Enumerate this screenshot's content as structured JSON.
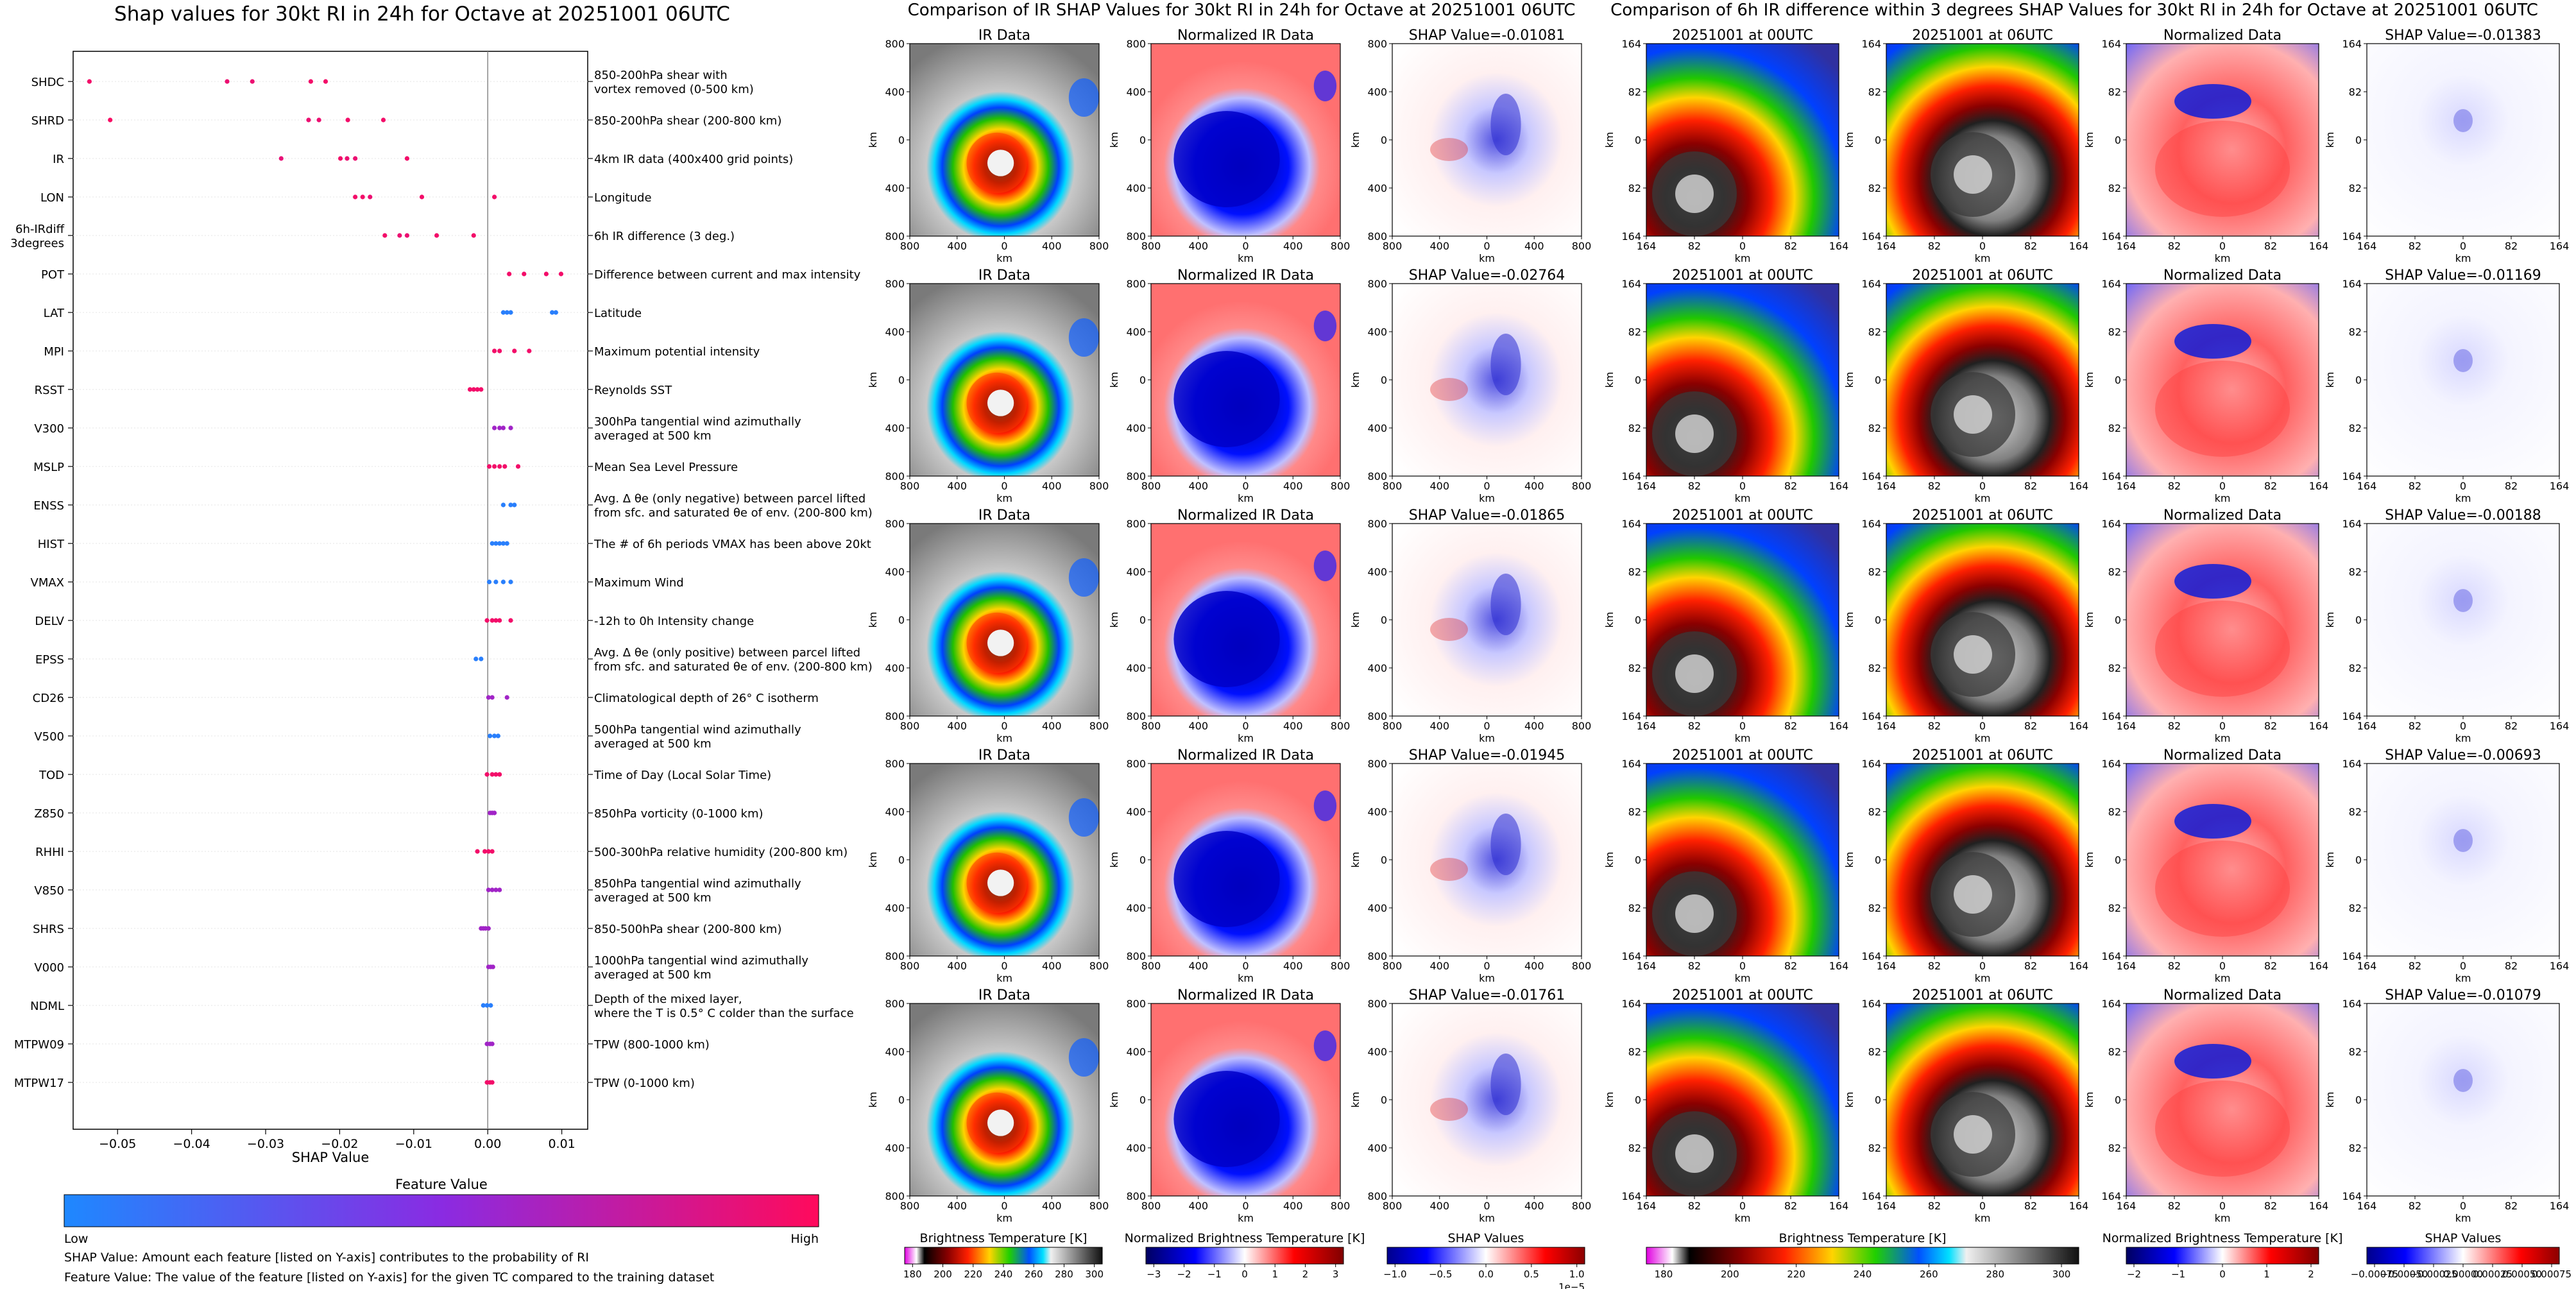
{
  "beeswarm": {
    "title": "Shap values for 30kt RI in 24h for Octave at 20251001 06UTC",
    "xlabel": "SHAP Value",
    "features": [
      {
        "name": "SHDC",
        "desc": "850-200hPa shear with\nvortex removed (0-500 km)"
      },
      {
        "name": "SHRD",
        "desc": "850-200hPa shear (200-800 km)"
      },
      {
        "name": "IR",
        "desc": "4km IR data (400x400 grid points)"
      },
      {
        "name": "LON",
        "desc": "Longitude"
      },
      {
        "name": "6h-IRdiff\n3degrees",
        "desc": "6h IR difference (3 deg.)"
      },
      {
        "name": "POT",
        "desc": "Difference between current and max intensity"
      },
      {
        "name": "LAT",
        "desc": "Latitude"
      },
      {
        "name": "MPI",
        "desc": "Maximum potential intensity"
      },
      {
        "name": "RSST",
        "desc": "Reynolds SST"
      },
      {
        "name": "V300",
        "desc": "300hPa tangential wind azimuthally\naveraged at 500 km"
      },
      {
        "name": "MSLP",
        "desc": "Mean Sea Level Pressure"
      },
      {
        "name": "ENSS",
        "desc": "Avg. Δ θe (only negative) between parcel lifted\nfrom sfc. and saturated θe of env. (200-800 km)"
      },
      {
        "name": "HIST",
        "desc": "The # of 6h periods VMAX has been above 20kt"
      },
      {
        "name": "VMAX",
        "desc": "Maximum Wind"
      },
      {
        "name": "DELV",
        "desc": "-12h to 0h Intensity change"
      },
      {
        "name": "EPSS",
        "desc": "Avg. Δ θe (only positive) between parcel lifted\nfrom sfc. and saturated θe of env. (200-800 km)"
      },
      {
        "name": "CD26",
        "desc": "Climatological depth of 26° C isotherm"
      },
      {
        "name": "V500",
        "desc": "500hPa tangential wind azimuthally\naveraged at 500 km"
      },
      {
        "name": "TOD",
        "desc": "Time of Day (Local Solar Time)"
      },
      {
        "name": "Z850",
        "desc": "850hPa vorticity (0-1000 km)"
      },
      {
        "name": "RHHI",
        "desc": "500-300hPa relative humidity (200-800 km)"
      },
      {
        "name": "V850",
        "desc": "850hPa tangential wind azimuthally\naveraged at 500 km"
      },
      {
        "name": "SHRS",
        "desc": "850-500hPa shear (200-800 km)"
      },
      {
        "name": "V000",
        "desc": "1000hPa tangential wind azimuthally\naveraged at 500 km"
      },
      {
        "name": "NDML",
        "desc": "Depth of the mixed layer,\nwhere the T is 0.5° C colder than the surface"
      },
      {
        "name": "MTPW09",
        "desc": "TPW (800-1000 km)"
      },
      {
        "name": "MTPW17",
        "desc": "TPW (0-1000 km)"
      }
    ],
    "colorbar_title": "Feature Value",
    "colorbar_low": "Low",
    "colorbar_high": "High",
    "note1": "SHAP Value: Amount each feature [listed on Y-axis] contributes to the probability of RI",
    "note2": "Feature Value: The value of the feature [listed on Y-axis] for the given TC compared to the training dataset"
  },
  "ir_section": {
    "title": "Comparison of IR SHAP Values for 30kt RI in 24h for Octave at 20251001 06UTC",
    "col_titles": [
      "IR Data",
      "Normalized IR Data"
    ],
    "shap_titles": [
      "SHAP Value=-0.01081",
      "SHAP Value=-0.02764",
      "SHAP Value=-0.01865",
      "SHAP Value=-0.01945",
      "SHAP Value=-0.01761"
    ],
    "ticks": [
      "800",
      "400",
      "0",
      "400",
      "800"
    ],
    "unit": "km",
    "cb1_label": "Brightness Temperature [K]",
    "cb1_ticks": [
      "180",
      "200",
      "220",
      "240",
      "260",
      "280",
      "300"
    ],
    "cb2_label": "Normalized Brightness Temperature [K]",
    "cb2_ticks": [
      "−3",
      "−2",
      "−1",
      "0",
      "1",
      "2",
      "3"
    ],
    "cb3_label": "SHAP Values",
    "cb3_ticks": [
      "−1.0",
      "−0.5",
      "0.0",
      "0.5",
      "1.0"
    ],
    "cb3_exp": "1e−5"
  },
  "irdiff_section": {
    "title": "Comparison of 6h IR difference within 3 degrees SHAP Values for 30kt RI in 24h for Octave at 20251001 06UTC",
    "col_titles": [
      "20251001 at 00UTC",
      "20251001 at 06UTC",
      "Normalized Data"
    ],
    "shap_titles": [
      "SHAP Value=-0.01383",
      "SHAP Value=-0.01169",
      "SHAP Value=-0.00188",
      "SHAP Value=-0.00693",
      "SHAP Value=-0.01079"
    ],
    "ticks": [
      "164",
      "82",
      "0",
      "82",
      "164"
    ],
    "unit": "km",
    "cb1_label": "Brightness Temperature [K]",
    "cb1_ticks": [
      "180",
      "200",
      "220",
      "240",
      "260",
      "280",
      "300"
    ],
    "cb2_label": "Normalized Brightness Temperature [K]",
    "cb2_ticks": [
      "−2",
      "−1",
      "0",
      "1",
      "2"
    ],
    "cb3_label": "SHAP Values",
    "cb3_ticks": [
      "−0.00075",
      "−0.00050",
      "−0.00025",
      "0.00000",
      "0.00025",
      "0.00050",
      "0.00075"
    ]
  },
  "chart_data": [
    {
      "type": "scatter",
      "title": "Shap values for 30kt RI in 24h for Octave at 20251001 06UTC",
      "xlabel": "SHAP Value",
      "ylabel": "",
      "xlim": [
        -0.056,
        0.0135
      ],
      "xticks": [
        -0.05,
        -0.04,
        -0.03,
        -0.02,
        -0.01,
        0.0,
        0.01
      ],
      "xtick_labels": [
        "−0.05",
        "−0.04",
        "−0.03",
        "−0.02",
        "−0.01",
        "0.00",
        "0.01"
      ],
      "categories": [
        "SHDC",
        "SHRD",
        "IR",
        "LON",
        "6h-IRdiff 3degrees",
        "POT",
        "LAT",
        "MPI",
        "RSST",
        "V300",
        "MSLP",
        "ENSS",
        "HIST",
        "VMAX",
        "DELV",
        "EPSS",
        "CD26",
        "V500",
        "TOD",
        "Z850",
        "RHHI",
        "V850",
        "SHRS",
        "V000",
        "NDML",
        "MTPW09",
        "MTPW17"
      ],
      "series": [
        {
          "values": [
            [
              -0.0538,
              0.95
            ],
            [
              -0.0352,
              0.92
            ],
            [
              -0.0318,
              0.92
            ],
            [
              -0.0239,
              0.95
            ],
            [
              -0.0219,
              0.95
            ]
          ]
        },
        {
          "values": [
            [
              -0.051,
              0.97
            ],
            [
              -0.0242,
              0.92
            ],
            [
              -0.0228,
              0.92
            ],
            [
              -0.0189,
              0.95
            ],
            [
              -0.0141,
              0.95
            ]
          ]
        },
        {
          "values": [
            [
              -0.0279,
              0.9
            ],
            [
              -0.0199,
              0.95
            ],
            [
              -0.019,
              0.92
            ],
            [
              -0.0179,
              0.92
            ],
            [
              -0.0109,
              0.95
            ]
          ]
        },
        {
          "values": [
            [
              -0.0179,
              0.95
            ],
            [
              -0.0169,
              0.95
            ],
            [
              -0.0159,
              0.92
            ],
            [
              -0.0089,
              0.95
            ],
            [
              0.0009,
              0.95
            ]
          ]
        },
        {
          "values": [
            [
              -0.0139,
              0.95
            ],
            [
              -0.0119,
              0.92
            ],
            [
              -0.0109,
              0.92
            ],
            [
              -0.0069,
              0.95
            ],
            [
              -0.0019,
              0.95
            ]
          ]
        },
        {
          "values": [
            [
              0.0029,
              0.95
            ],
            [
              0.0049,
              0.95
            ],
            [
              0.0079,
              0.95
            ],
            [
              0.0099,
              0.95
            ]
          ]
        },
        {
          "values": [
            [
              0.0021,
              0.05
            ],
            [
              0.0026,
              0.05
            ],
            [
              0.0031,
              0.05
            ],
            [
              0.0087,
              0.05
            ],
            [
              0.0092,
              0.05
            ]
          ]
        },
        {
          "values": [
            [
              0.0009,
              0.95
            ],
            [
              0.0016,
              0.95
            ],
            [
              0.0036,
              0.95
            ],
            [
              0.0056,
              0.95
            ]
          ]
        },
        {
          "values": [
            [
              -0.0024,
              0.95
            ],
            [
              -0.0019,
              0.95
            ],
            [
              -0.0014,
              0.95
            ],
            [
              -0.0009,
              0.95
            ]
          ]
        },
        {
          "values": [
            [
              0.0009,
              0.6
            ],
            [
              0.0016,
              0.6
            ],
            [
              0.0021,
              0.6
            ],
            [
              0.0031,
              0.6
            ]
          ]
        },
        {
          "values": [
            [
              0.0002,
              0.95
            ],
            [
              0.0009,
              0.95
            ],
            [
              0.0016,
              0.95
            ],
            [
              0.0023,
              0.95
            ],
            [
              0.0041,
              0.95
            ]
          ]
        },
        {
          "values": [
            [
              0.0021,
              0.05
            ],
            [
              0.0031,
              0.05
            ],
            [
              0.0036,
              0.05
            ]
          ]
        },
        {
          "values": [
            [
              0.0006,
              0.05
            ],
            [
              0.0011,
              0.05
            ],
            [
              0.0016,
              0.05
            ],
            [
              0.0021,
              0.05
            ],
            [
              0.0026,
              0.05
            ]
          ]
        },
        {
          "values": [
            [
              0.0002,
              0.05
            ],
            [
              0.0011,
              0.05
            ],
            [
              0.0021,
              0.05
            ],
            [
              0.0031,
              0.05
            ]
          ]
        },
        {
          "values": [
            [
              -0.0001,
              0.95
            ],
            [
              0.0006,
              0.95
            ],
            [
              0.0011,
              0.95
            ],
            [
              0.0016,
              0.95
            ],
            [
              0.0031,
              0.95
            ]
          ]
        },
        {
          "values": [
            [
              -0.0016,
              0.05
            ],
            [
              -0.0009,
              0.05
            ]
          ]
        },
        {
          "values": [
            [
              0.0001,
              0.6
            ],
            [
              0.0006,
              0.6
            ],
            [
              0.0026,
              0.6
            ]
          ]
        },
        {
          "values": [
            [
              0.0003,
              0.05
            ],
            [
              0.0009,
              0.05
            ],
            [
              0.0014,
              0.05
            ]
          ]
        },
        {
          "values": [
            [
              -0.0001,
              0.95
            ],
            [
              0.0006,
              0.95
            ],
            [
              0.0011,
              0.95
            ],
            [
              0.0016,
              0.95
            ]
          ]
        },
        {
          "values": [
            [
              0.0003,
              0.6
            ],
            [
              0.0006,
              0.6
            ],
            [
              0.0009,
              0.6
            ]
          ]
        },
        {
          "values": [
            [
              -0.0014,
              0.95
            ],
            [
              -0.0004,
              0.95
            ],
            [
              0.0001,
              0.95
            ],
            [
              0.0006,
              0.95
            ]
          ]
        },
        {
          "values": [
            [
              0.0001,
              0.6
            ],
            [
              0.0006,
              0.6
            ],
            [
              0.0011,
              0.6
            ],
            [
              0.0016,
              0.6
            ]
          ]
        },
        {
          "values": [
            [
              -0.0009,
              0.6
            ],
            [
              -0.0006,
              0.6
            ],
            [
              -0.0003,
              0.6
            ],
            [
              0.0001,
              0.6
            ]
          ]
        },
        {
          "values": [
            [
              0.0001,
              0.6
            ],
            [
              0.0004,
              0.6
            ],
            [
              0.0007,
              0.6
            ]
          ]
        },
        {
          "values": [
            [
              -0.0006,
              0.05
            ],
            [
              -0.0001,
              0.05
            ],
            [
              0.0004,
              0.05
            ]
          ]
        },
        {
          "values": [
            [
              -0.0001,
              0.6
            ],
            [
              0.0003,
              0.6
            ],
            [
              0.0006,
              0.6
            ]
          ]
        },
        {
          "values": [
            [
              -0.0001,
              0.95
            ],
            [
              0.0003,
              0.95
            ],
            [
              0.0006,
              0.95
            ]
          ]
        }
      ]
    },
    {
      "type": "heatmap",
      "title": "Comparison of IR SHAP Values for 30kt RI in 24h for Octave at 20251001 06UTC",
      "columns": [
        "IR Data",
        "Normalized IR Data",
        "SHAP Value"
      ],
      "shap_values": [
        -0.01081,
        -0.02764,
        -0.01865,
        -0.01945,
        -0.01761
      ],
      "xlim": [
        -800,
        800
      ],
      "ylim": [
        -800,
        800
      ]
    },
    {
      "type": "heatmap",
      "title": "Comparison of 6h IR difference within 3 degrees SHAP Values for 30kt RI in 24h for Octave at 20251001 06UTC",
      "columns": [
        "20251001 at 00UTC",
        "20251001 at 06UTC",
        "Normalized Data",
        "SHAP Value"
      ],
      "shap_values": [
        -0.01383,
        -0.01169,
        -0.00188,
        -0.00693,
        -0.01079
      ],
      "xlim": [
        -164,
        164
      ],
      "ylim": [
        -164,
        164
      ]
    }
  ]
}
